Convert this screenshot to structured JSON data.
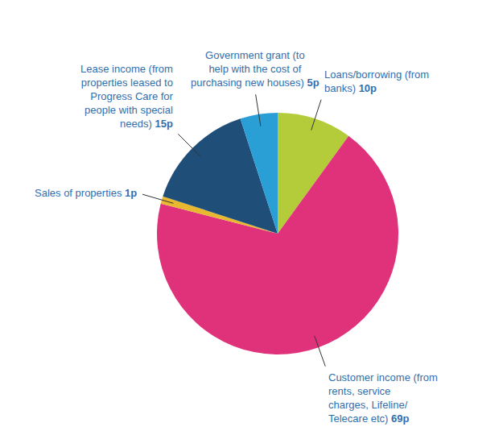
{
  "chart_data": {
    "type": "pie",
    "categories": [
      "Loans/borrowing (from banks)",
      "Customer income (from rents, service charges, Lifeline/ Telecare etc)",
      "Sales of properties",
      "Lease income (from properties leased to Progress Care for people with special needs)",
      "Government grant (to help with the cost of purchasing new houses)"
    ],
    "values": [
      10,
      69,
      1,
      15,
      5
    ],
    "value_labels": [
      "10p",
      "69p",
      "1p",
      "15p",
      "5p"
    ],
    "colors": [
      "#b5cc3a",
      "#e0327a",
      "#e8b830",
      "#1f4e79",
      "#2a9fd6"
    ],
    "data_labels": true
  }
}
